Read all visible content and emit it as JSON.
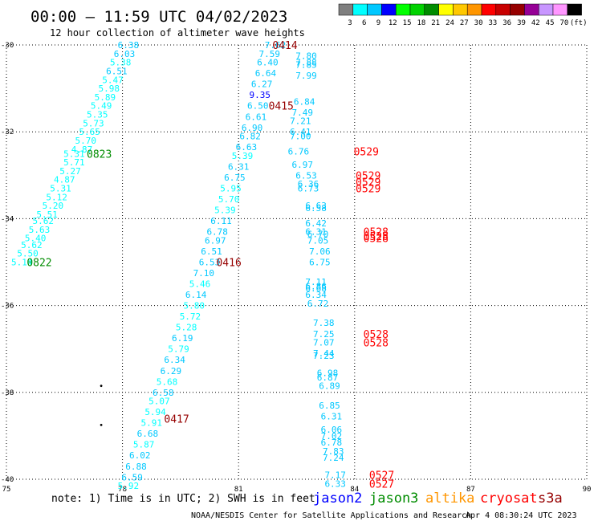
{
  "header": {
    "title": "00:00 – 11:59 UTC 04/02/2023",
    "subtitle": "12 hour collection of altimeter wave heights"
  },
  "color_scale": {
    "colors": [
      "#7f7f7f",
      "#00ffff",
      "#00c8ff",
      "#0000ff",
      "#00ff00",
      "#00d200",
      "#008c00",
      "#ffff00",
      "#ffc800",
      "#ff9600",
      "#ff0000",
      "#c80000",
      "#960000",
      "#960096",
      "#c896ff",
      "#ff96ff",
      "#000000"
    ],
    "labels": [
      "3",
      "6",
      "9",
      "12",
      "15",
      "18",
      "21",
      "24",
      "27",
      "30",
      "33",
      "36",
      "39",
      "42",
      "45",
      "70",
      "(ft)"
    ]
  },
  "footer": {
    "note": "note: 1) Time is in UTC; 2) SWH is in feet",
    "credit": "NOAA/NESDIS Center for Satellite Applications and Research",
    "generated": "Apr  4 08:30:24 UTC 2023",
    "legend": [
      {
        "name": "jason2",
        "color": "#0000ff"
      },
      {
        "name": "jason3",
        "color": "#008c00"
      },
      {
        "name": "altika",
        "color": "#ff9600"
      },
      {
        "name": "cryosat",
        "color": "#ff0000"
      },
      {
        "name": "s3a",
        "color": "#960000"
      }
    ]
  },
  "chart_data": {
    "type": "scatter",
    "title": "00:00 – 11:59 UTC 04/02/2023",
    "subtitle": "12 hour collection of altimeter wave heights",
    "xlim": [
      75,
      90
    ],
    "ylim": [
      -40,
      -30
    ],
    "xticks": [
      75,
      78,
      81,
      84,
      87,
      90
    ],
    "yticks": [
      -30,
      -32,
      -34,
      -36,
      -38,
      -40
    ],
    "xtick_labels": [
      "75",
      "78",
      "81",
      "84",
      "87",
      "90"
    ],
    "ytick_labels": [
      "-30",
      "-32",
      "-34",
      "-36",
      "-38",
      "-40"
    ],
    "grid": true,
    "value_units": "ft",
    "tracks": [
      {
        "label": "0823",
        "label_color": "#008c00",
        "label_pos": [
          77.4,
          -32.5
        ],
        "points": [
          [
            78.15,
            -30.0,
            "6.38",
            "#00c8ff"
          ],
          [
            78.05,
            -30.2,
            "6.03",
            "#00c8ff"
          ],
          [
            77.95,
            -30.4,
            "5.38",
            "#00ffff"
          ],
          [
            77.85,
            -30.6,
            "6.51",
            "#00c8ff"
          ],
          [
            77.75,
            -30.8,
            "5.47",
            "#00ffff"
          ],
          [
            77.65,
            -31.0,
            "5.98",
            "#00ffff"
          ],
          [
            77.55,
            -31.2,
            "5.89",
            "#00ffff"
          ],
          [
            77.45,
            -31.4,
            "5.49",
            "#00ffff"
          ],
          [
            77.35,
            -31.6,
            "5.35",
            "#00ffff"
          ],
          [
            77.25,
            -31.8,
            "5.73",
            "#00ffff"
          ],
          [
            77.15,
            -32.0,
            "5.65",
            "#00ffff"
          ],
          [
            77.05,
            -32.2,
            "5.70",
            "#00ffff"
          ],
          [
            76.95,
            -32.4,
            "4.87",
            "#00ffff"
          ],
          [
            76.75,
            -32.5,
            "5.31",
            "#00ffff"
          ],
          [
            76.75,
            -32.7,
            "5.71",
            "#00ffff"
          ],
          [
            76.65,
            -32.9,
            "5.27",
            "#00ffff"
          ],
          [
            76.5,
            -33.1,
            "4.87",
            "#00ffff"
          ],
          [
            76.4,
            -33.3,
            "5.31",
            "#00ffff"
          ],
          [
            76.3,
            -33.5,
            "5.12",
            "#00ffff"
          ],
          [
            76.2,
            -33.7,
            "5.20",
            "#00ffff"
          ],
          [
            76.05,
            -33.9,
            "5.51",
            "#00ffff"
          ],
          [
            75.95,
            -34.05,
            "5.62",
            "#00ffff"
          ],
          [
            75.85,
            -34.25,
            "5.63",
            "#00ffff"
          ],
          [
            75.75,
            -34.45,
            "5.40",
            "#00ffff"
          ],
          [
            75.65,
            -34.6,
            "5.62",
            "#00ffff"
          ],
          [
            75.55,
            -34.8,
            "5.50",
            "#00ffff"
          ],
          [
            75.4,
            -35.0,
            "5.14",
            "#00ffff"
          ]
        ]
      },
      {
        "label": "0822",
        "label_color": "#008c00",
        "label_pos": [
          75.85,
          -35.0
        ],
        "points": []
      },
      {
        "label": "0414",
        "label_color": "#960000",
        "label_pos": [
          82.2,
          -30.0
        ],
        "points": [
          [
            81.95,
            -30.0,
            "7.62",
            "#00c8ff"
          ],
          [
            81.8,
            -30.2,
            "7.59",
            "#00c8ff"
          ],
          [
            81.75,
            -30.4,
            "6.40",
            "#00c8ff"
          ],
          [
            81.7,
            -30.65,
            "6.64",
            "#00c8ff"
          ],
          [
            81.6,
            -30.9,
            "6.27",
            "#00c8ff"
          ],
          [
            81.55,
            -31.15,
            "9.35",
            "#0000ff"
          ],
          [
            81.5,
            -31.4,
            "6.50",
            "#00c8ff"
          ],
          [
            81.45,
            -31.65,
            "6.61",
            "#00c8ff"
          ],
          [
            81.35,
            -31.9,
            "6.90",
            "#00c8ff"
          ],
          [
            81.3,
            -32.1,
            "6.82",
            "#00c8ff"
          ],
          [
            81.2,
            -32.35,
            "6.63",
            "#00c8ff"
          ],
          [
            81.1,
            -32.55,
            "5.39",
            "#00ffff"
          ],
          [
            81.0,
            -32.8,
            "6.31",
            "#00c8ff"
          ],
          [
            80.9,
            -33.05,
            "6.75",
            "#00c8ff"
          ],
          [
            80.8,
            -33.3,
            "5.95",
            "#00ffff"
          ],
          [
            80.75,
            -33.55,
            "5.70",
            "#00ffff"
          ],
          [
            80.65,
            -33.8,
            "5.39",
            "#00ffff"
          ],
          [
            80.55,
            -34.05,
            "6.11",
            "#00c8ff"
          ],
          [
            80.45,
            -34.3,
            "6.78",
            "#00c8ff"
          ],
          [
            80.4,
            -34.5,
            "6.97",
            "#00c8ff"
          ],
          [
            80.3,
            -34.75,
            "6.51",
            "#00c8ff"
          ],
          [
            80.25,
            -35.0,
            "6.53",
            "#00c8ff"
          ],
          [
            80.1,
            -35.25,
            "7.10",
            "#00c8ff"
          ],
          [
            80.0,
            -35.5,
            "5.46",
            "#00ffff"
          ],
          [
            79.9,
            -35.75,
            "6.14",
            "#00c8ff"
          ],
          [
            79.85,
            -36.0,
            "5.80",
            "#00ffff"
          ],
          [
            79.75,
            -36.25,
            "5.72",
            "#00ffff"
          ],
          [
            79.65,
            -36.5,
            "5.28",
            "#00ffff"
          ],
          [
            79.55,
            -36.75,
            "6.19",
            "#00c8ff"
          ],
          [
            79.45,
            -37.0,
            "5.79",
            "#00ffff"
          ],
          [
            79.35,
            -37.25,
            "6.34",
            "#00c8ff"
          ],
          [
            79.25,
            -37.5,
            "6.29",
            "#00c8ff"
          ],
          [
            79.15,
            -37.75,
            "5.68",
            "#00ffff"
          ],
          [
            79.05,
            -38.0,
            "6.58",
            "#00c8ff"
          ],
          [
            78.95,
            -38.2,
            "5.07",
            "#00ffff"
          ],
          [
            78.85,
            -38.45,
            "5.94",
            "#00ffff"
          ],
          [
            78.75,
            -38.7,
            "5.91",
            "#00ffff"
          ],
          [
            78.65,
            -38.95,
            "6.68",
            "#00c8ff"
          ],
          [
            78.55,
            -39.2,
            "5.87",
            "#00ffff"
          ],
          [
            78.45,
            -39.45,
            "6.02",
            "#00c8ff"
          ],
          [
            78.35,
            -39.7,
            "6.88",
            "#00c8ff"
          ],
          [
            78.25,
            -39.95,
            "6.59",
            "#00c8ff"
          ],
          [
            78.15,
            -40.15,
            "5.92",
            "#00ffff"
          ]
        ]
      },
      {
        "label": "0415",
        "label_color": "#960000",
        "label_pos": [
          82.1,
          -31.4
        ],
        "points": []
      },
      {
        "label": "0416",
        "label_color": "#960000",
        "label_pos": [
          80.75,
          -35.0
        ],
        "points": []
      },
      {
        "label": "0417",
        "label_color": "#960000",
        "label_pos": [
          79.4,
          -38.6
        ],
        "points": []
      },
      {
        "label": "",
        "label_color": "#ff0000",
        "label_pos": [
          0,
          0
        ],
        "points": [
          [
            82.75,
            -30.25,
            "7.80",
            "#00c8ff"
          ],
          [
            82.75,
            -30.4,
            "7.88",
            "#00c8ff"
          ],
          [
            82.75,
            -30.45,
            "7.85",
            "#00c8ff"
          ],
          [
            82.75,
            -30.7,
            "7.99",
            "#00c8ff"
          ],
          [
            82.7,
            -31.3,
            "6.84",
            "#00c8ff"
          ],
          [
            82.65,
            -31.55,
            "7.49",
            "#00c8ff"
          ],
          [
            82.6,
            -31.75,
            "7.21",
            "#00c8ff"
          ],
          [
            82.6,
            -32.0,
            "6.41",
            "#00c8ff"
          ],
          [
            82.6,
            -32.1,
            "7.00",
            "#00c8ff"
          ],
          [
            82.55,
            -32.45,
            "6.76",
            "#00c8ff"
          ],
          [
            82.65,
            -32.75,
            "6.97",
            "#00c8ff"
          ],
          [
            82.75,
            -33.0,
            "6.53",
            "#00c8ff"
          ],
          [
            82.8,
            -33.2,
            "6.36",
            "#00c8ff"
          ],
          [
            82.8,
            -33.3,
            "6.73",
            "#00c8ff"
          ],
          [
            83.0,
            -33.7,
            "6.63",
            "#00c8ff"
          ],
          [
            83.0,
            -33.75,
            "6.58",
            "#00c8ff"
          ],
          [
            83.0,
            -34.1,
            "6.42",
            "#00c8ff"
          ],
          [
            83.0,
            -34.3,
            "6.31",
            "#00c8ff"
          ],
          [
            83.05,
            -34.35,
            "6.70",
            "#00c8ff"
          ],
          [
            83.05,
            -34.5,
            "7.05",
            "#00c8ff"
          ],
          [
            83.1,
            -34.75,
            "7.06",
            "#00c8ff"
          ],
          [
            83.1,
            -35.0,
            "6.75",
            "#00c8ff"
          ],
          [
            83.0,
            -35.45,
            "7.11",
            "#00c8ff"
          ],
          [
            83.0,
            -35.55,
            "6.86",
            "#00c8ff"
          ],
          [
            83.0,
            -35.6,
            "6.68",
            "#00c8ff"
          ],
          [
            83.0,
            -35.75,
            "6.34",
            "#00c8ff"
          ],
          [
            83.05,
            -35.95,
            "6.72",
            "#00c8ff"
          ],
          [
            83.2,
            -36.4,
            "7.38",
            "#00c8ff"
          ],
          [
            83.2,
            -36.65,
            "7.25",
            "#00c8ff"
          ],
          [
            83.2,
            -36.85,
            "7.07",
            "#00c8ff"
          ],
          [
            83.2,
            -37.1,
            "7.44",
            "#00c8ff"
          ],
          [
            83.2,
            -37.15,
            "7.23",
            "#00c8ff"
          ],
          [
            83.3,
            -37.55,
            "6.98",
            "#00c8ff"
          ],
          [
            83.3,
            -37.65,
            "6.87",
            "#00c8ff"
          ],
          [
            83.35,
            -37.85,
            "6.89",
            "#00c8ff"
          ],
          [
            83.35,
            -38.3,
            "6.85",
            "#00c8ff"
          ],
          [
            83.4,
            -38.55,
            "6.31",
            "#00c8ff"
          ],
          [
            83.4,
            -38.85,
            "6.06",
            "#00c8ff"
          ],
          [
            83.4,
            -39.0,
            "7.02",
            "#00c8ff"
          ],
          [
            83.4,
            -39.15,
            "6.78",
            "#00c8ff"
          ],
          [
            83.45,
            -39.35,
            "7.83",
            "#00c8ff"
          ],
          [
            83.45,
            -39.5,
            "7.24",
            "#00c8ff"
          ],
          [
            83.5,
            -39.9,
            "7.17",
            "#00c8ff"
          ],
          [
            83.5,
            -40.1,
            "6.33",
            "#00c8ff"
          ]
        ]
      },
      {
        "label": "0529",
        "label_color": "#ff0000",
        "label_pos": [
          84.3,
          -32.45
        ],
        "points": []
      },
      {
        "label": "0529",
        "label_color": "#ff0000",
        "label_pos": [
          84.35,
          -33.0
        ],
        "points": []
      },
      {
        "label": "0529",
        "label_color": "#ff0000",
        "label_pos": [
          84.35,
          -33.15
        ],
        "points": []
      },
      {
        "label": "0529",
        "label_color": "#ff0000",
        "label_pos": [
          84.35,
          -33.3
        ],
        "points": []
      },
      {
        "label": "0528",
        "label_color": "#ff0000",
        "label_pos": [
          84.55,
          -34.3
        ],
        "points": []
      },
      {
        "label": "0528",
        "label_color": "#ff0000",
        "label_pos": [
          84.55,
          -34.4
        ],
        "points": []
      },
      {
        "label": "0528",
        "label_color": "#ff0000",
        "label_pos": [
          84.55,
          -34.45
        ],
        "points": []
      },
      {
        "label": "0528",
        "label_color": "#ff0000",
        "label_pos": [
          84.55,
          -36.65
        ],
        "points": []
      },
      {
        "label": "0528",
        "label_color": "#ff0000",
        "label_pos": [
          84.55,
          -36.85
        ],
        "points": []
      },
      {
        "label": "0527",
        "label_color": "#ff0000",
        "label_pos": [
          84.7,
          -39.9
        ],
        "points": []
      },
      {
        "label": "0527",
        "label_color": "#ff0000",
        "label_pos": [
          84.7,
          -40.1
        ],
        "points": []
      }
    ],
    "markers": [
      [
        77.45,
        -37.85
      ],
      [
        77.45,
        -38.75
      ]
    ]
  }
}
